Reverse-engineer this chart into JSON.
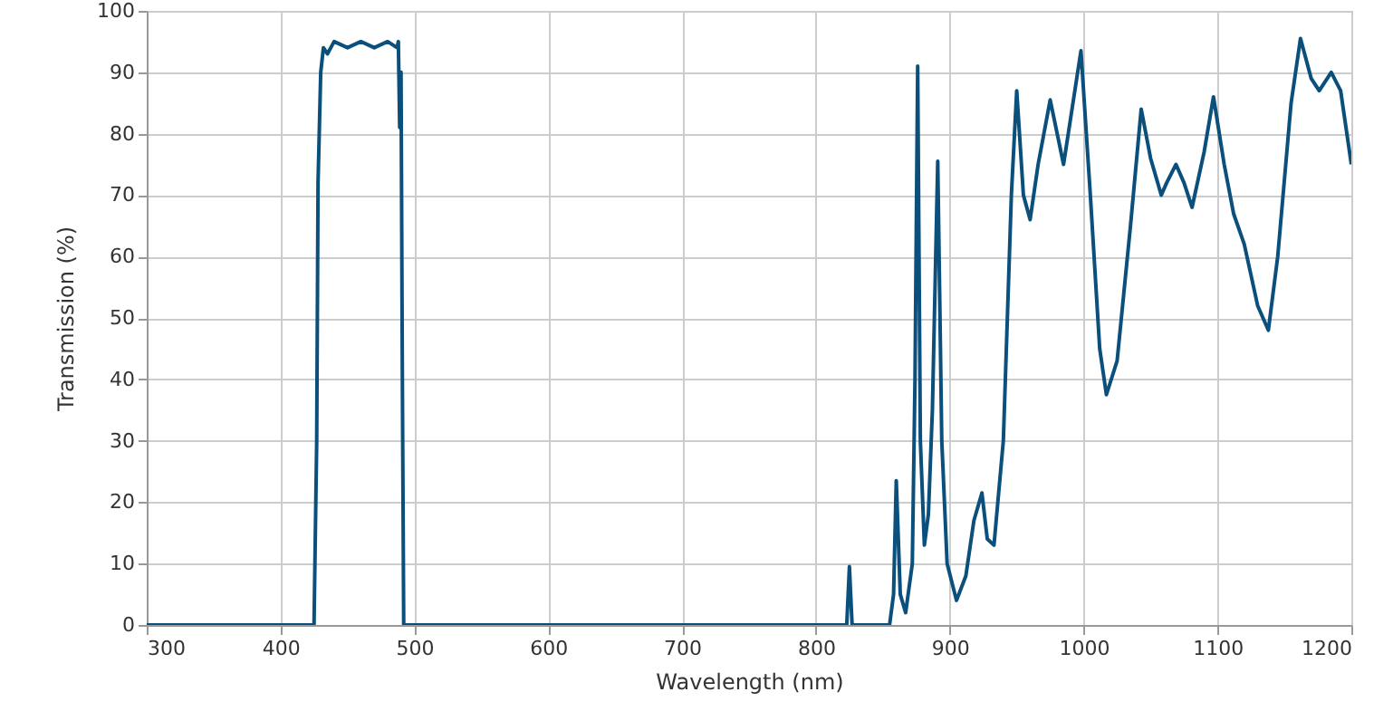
{
  "chart_data": {
    "type": "line",
    "xlabel": "Wavelength (nm)",
    "ylabel": "Transmission (%)",
    "x": [
      300,
      425,
      427,
      428,
      430,
      432,
      435,
      440,
      450,
      460,
      470,
      480,
      487,
      488,
      489,
      490,
      491,
      492,
      823,
      825,
      827,
      855,
      858,
      860,
      863,
      867,
      872,
      874,
      876,
      878,
      881,
      884,
      887,
      891,
      894,
      898,
      905,
      912,
      918,
      924,
      928,
      933,
      940,
      946,
      950,
      955,
      960,
      966,
      975,
      985,
      998,
      1005,
      1012,
      1017,
      1025,
      1035,
      1043,
      1050,
      1058,
      1062,
      1069,
      1075,
      1081,
      1090,
      1097,
      1105,
      1112,
      1120,
      1130,
      1138,
      1145,
      1155,
      1162,
      1170,
      1176,
      1185,
      1192,
      1200
    ],
    "series": [
      {
        "color": "#0b4f7c",
        "values": [
          0,
          0,
          30,
          72,
          90,
          94,
          93,
          95,
          94,
          95,
          94,
          95,
          94,
          95,
          81,
          90,
          40,
          0,
          0,
          9.5,
          0,
          0,
          5,
          23.5,
          5,
          2,
          10,
          40,
          91,
          30,
          13,
          18,
          35,
          75.5,
          30,
          10,
          4,
          8,
          17,
          21.5,
          14,
          13,
          30,
          70,
          87,
          70,
          66,
          75,
          85.5,
          75,
          93.5,
          70,
          45,
          37.5,
          43,
          65,
          84,
          76,
          70,
          72,
          75,
          72,
          68,
          77,
          86,
          75,
          67,
          62,
          52,
          48,
          60,
          85,
          95.5,
          89,
          87,
          90,
          87,
          75
        ]
      }
    ],
    "xlim": [
      300,
      1200
    ],
    "ylim": [
      0,
      100
    ],
    "xticks": [
      300,
      400,
      500,
      600,
      700,
      800,
      900,
      1000,
      1100,
      1200
    ],
    "yticks": [
      0,
      10,
      20,
      30,
      40,
      50,
      60,
      70,
      80,
      90,
      100
    ],
    "grid": true,
    "line_style": "solid",
    "marker": "none"
  }
}
